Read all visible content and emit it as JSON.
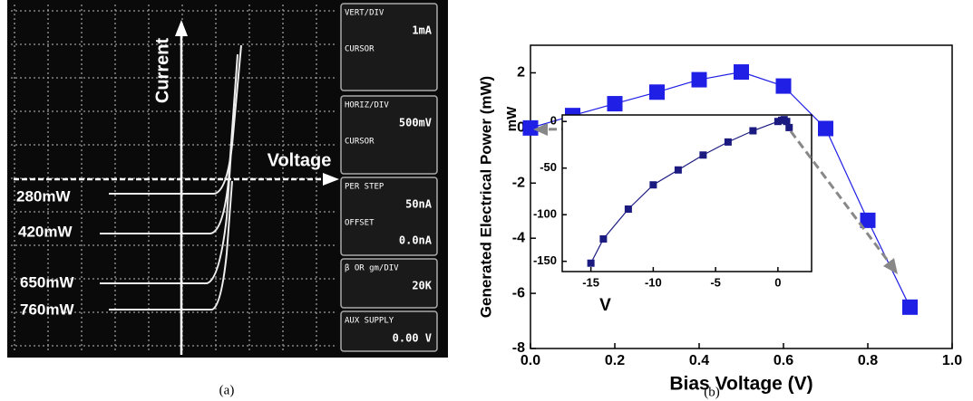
{
  "panel_a": {
    "caption": "(a)",
    "y_axis_label": "Current",
    "x_axis_label": "Voltage",
    "curve_labels": [
      "280mW",
      "420mW",
      "650mW",
      "760mW"
    ],
    "readouts": [
      {
        "label": "VERT/DIV",
        "value": "1mA",
        "sublabel": "CURSOR"
      },
      {
        "label": "HORIZ/DIV",
        "value": "500mV",
        "sublabel": "CURSOR"
      },
      {
        "label": "PER STEP",
        "value": "50nA",
        "sublabel": "OFFSET",
        "subvalue": "0.0nA"
      },
      {
        "label": "β OR gm/DIV",
        "value": "20K"
      },
      {
        "label": "AUX SUPPLY",
        "value": "0.00 V"
      }
    ]
  },
  "caption_b": "(b)",
  "chart_data": [
    {
      "type": "line",
      "x_label": "Bias Voltage (V)",
      "y_label": "Generated Electrical Power (mW)",
      "x": [
        0,
        0.1,
        0.2,
        0.3,
        0.4,
        0.5,
        0.6,
        0.7,
        0.8,
        0.9
      ],
      "values": [
        0,
        0.45,
        0.88,
        1.3,
        1.75,
        2.03,
        1.52,
        -0.02,
        -3.35,
        -6.5
      ],
      "color": "#1f1fe6",
      "marker": "square",
      "xlim": [
        0,
        1
      ],
      "ylim": [
        -8,
        3
      ],
      "xticks": [
        {
          "value": 0,
          "label": "0.0"
        },
        {
          "value": 0.2,
          "label": "0.2"
        },
        {
          "value": 0.4,
          "label": "0.4"
        },
        {
          "value": 0.6,
          "label": "0.6"
        },
        {
          "value": 0.8,
          "label": "0.8"
        },
        {
          "value": 1,
          "label": "1.0"
        }
      ],
      "yticks": [
        -8,
        -6,
        -4,
        -2,
        0,
        2
      ]
    },
    {
      "type": "line",
      "x_label": "V",
      "y_label": "mW",
      "x": [
        -15,
        -14,
        -12,
        -10,
        -8,
        -6,
        -4,
        -2,
        0,
        0.3,
        0.5,
        0.7,
        0.9
      ],
      "values": [
        -152,
        -126,
        -94,
        -68,
        -52,
        -36,
        -22,
        -10,
        0,
        1.3,
        2,
        0,
        -6.5
      ],
      "color": "#1a1a80",
      "marker": "square",
      "xlim": [
        -17.3,
        2.7
      ],
      "ylim": [
        -161,
        7
      ],
      "xticks": [
        -15,
        -10,
        -5,
        0
      ],
      "yticks": [
        -150,
        -100,
        -50,
        0
      ]
    }
  ]
}
